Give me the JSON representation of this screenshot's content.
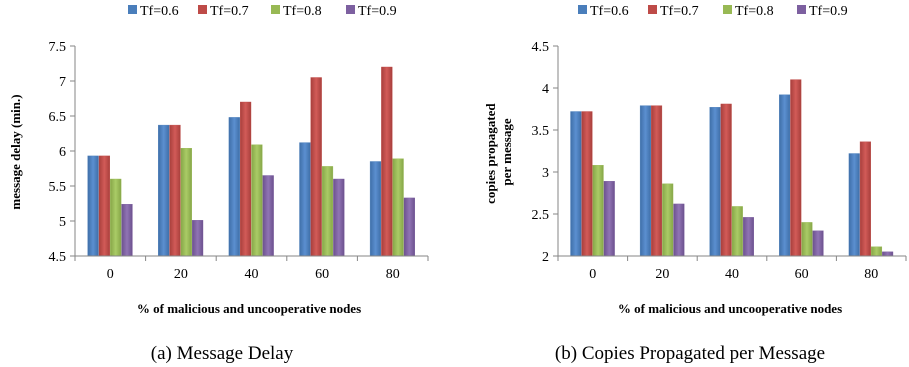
{
  "chart_data": [
    {
      "type": "bar",
      "caption": "(a) Message Delay",
      "xlabel": "% of malicious and uncooperative nodes",
      "ylabel": "message delay (min.)",
      "categories": [
        "0",
        "20",
        "40",
        "60",
        "80"
      ],
      "ylim": [
        4.5,
        7.5
      ],
      "yticks": [
        "4.5",
        "5",
        "5.5",
        "6",
        "6.5",
        "7",
        "7.5"
      ],
      "legend_position": "top",
      "grid": false,
      "series": [
        {
          "name": "Tf=0.6",
          "color": "#4a7ebb",
          "values": [
            5.93,
            6.37,
            6.48,
            6.12,
            5.85
          ]
        },
        {
          "name": "Tf=0.7",
          "color": "#be4b48",
          "values": [
            5.93,
            6.37,
            6.7,
            7.05,
            7.2
          ]
        },
        {
          "name": "Tf=0.8",
          "color": "#98b954",
          "values": [
            5.6,
            6.04,
            6.09,
            5.78,
            5.89
          ]
        },
        {
          "name": "Tf=0.9",
          "color": "#7d60a0",
          "values": [
            5.24,
            5.01,
            5.65,
            5.6,
            5.33
          ]
        }
      ]
    },
    {
      "type": "bar",
      "caption": "(b) Copies Propagated per Message",
      "xlabel": "% of malicious and uncooperative nodes",
      "ylabel": [
        "copies propagated",
        "per message"
      ],
      "categories": [
        "0",
        "20",
        "40",
        "60",
        "80"
      ],
      "ylim": [
        2,
        4.5
      ],
      "yticks": [
        "2",
        "2.5",
        "3",
        "3.5",
        "4",
        "4.5"
      ],
      "legend_position": "top",
      "grid": false,
      "series": [
        {
          "name": "Tf=0.6",
          "color": "#4a7ebb",
          "values": [
            3.72,
            3.79,
            3.77,
            3.92,
            3.22
          ]
        },
        {
          "name": "Tf=0.7",
          "color": "#be4b48",
          "values": [
            3.72,
            3.79,
            3.81,
            4.1,
            3.36
          ]
        },
        {
          "name": "Tf=0.8",
          "color": "#98b954",
          "values": [
            3.08,
            2.86,
            2.59,
            2.4,
            2.11
          ]
        },
        {
          "name": "Tf=0.9",
          "color": "#7d60a0",
          "values": [
            2.89,
            2.62,
            2.46,
            2.3,
            2.05
          ]
        }
      ]
    }
  ]
}
